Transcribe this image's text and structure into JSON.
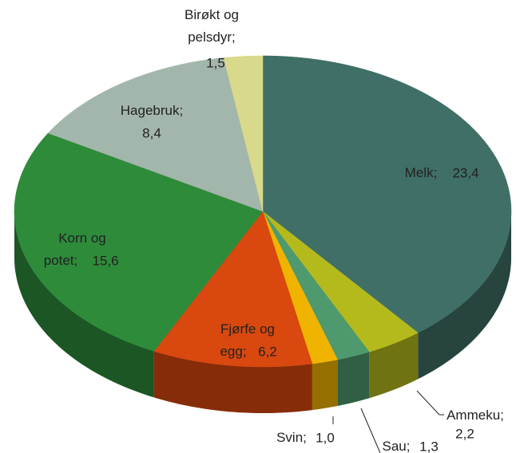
{
  "chart_data": {
    "type": "pie3d",
    "categories": [
      "Melk",
      "Ammeku",
      "Sau",
      "Svin",
      "Fjørfe og egg",
      "Korn og potet",
      "Hagebruk",
      "Birøkt og pelsdyr"
    ],
    "values": [
      23.4,
      2.2,
      1.3,
      1.0,
      6.2,
      15.6,
      8.4,
      1.5
    ],
    "value_labels": [
      "23,4",
      "2,2",
      "1,3",
      "1,0",
      "6,2",
      "15,6",
      "8,4",
      "1,5"
    ],
    "label_separator": ";",
    "colors": [
      "#3f6f66",
      "#b5ba1c",
      "#4e9a6e",
      "#f0b400",
      "#d9480f",
      "#2e8b3a",
      "#a3b6ab",
      "#d8d98a"
    ]
  }
}
